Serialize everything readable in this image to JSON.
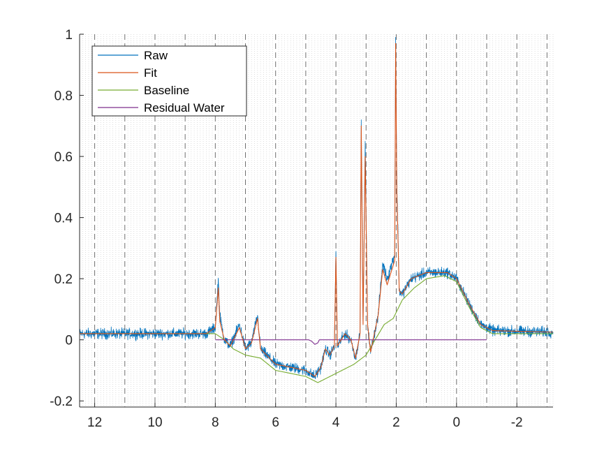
{
  "chart_data": {
    "type": "line",
    "title": "",
    "xlabel": "",
    "ylabel": "",
    "xlim": [
      12.5,
      -3.2
    ],
    "ylim": [
      -0.22,
      1.0
    ],
    "x_reversed": true,
    "x_ticks": [
      12,
      10,
      8,
      6,
      4,
      2,
      0,
      -2
    ],
    "x_tick_labels": [
      "12",
      "10",
      "8",
      "6",
      "4",
      "2",
      "0",
      "-2"
    ],
    "y_ticks": [
      -0.2,
      0,
      0.2,
      0.4,
      0.6,
      0.8,
      1
    ],
    "y_tick_labels": [
      "-0.2",
      "0",
      "0.2",
      "0.4",
      "0.6",
      "0.8",
      "1"
    ],
    "x_grid_major": [
      12,
      11,
      10,
      9,
      8,
      7,
      6,
      5,
      4,
      3,
      2,
      1,
      0,
      -1,
      -2,
      -3
    ],
    "x_grid_minor_step": 0.1,
    "grid": "vertical",
    "legend_position": "top-left",
    "series": [
      {
        "name": "Raw",
        "color": "#0072BD",
        "noise": 0.025,
        "points": [
          [
            12.5,
            0.02
          ],
          [
            8.3,
            0.02
          ],
          [
            8.0,
            0.04
          ],
          [
            7.9,
            0.2
          ],
          [
            7.85,
            0.08
          ],
          [
            7.7,
            0.0
          ],
          [
            7.5,
            -0.02
          ],
          [
            7.2,
            0.05
          ],
          [
            7.0,
            -0.03
          ],
          [
            6.8,
            -0.01
          ],
          [
            6.6,
            0.08
          ],
          [
            6.5,
            -0.03
          ],
          [
            6.0,
            -0.08
          ],
          [
            5.5,
            -0.09
          ],
          [
            5.0,
            -0.1
          ],
          [
            4.7,
            -0.12
          ],
          [
            4.5,
            -0.09
          ],
          [
            4.35,
            -0.03
          ],
          [
            4.2,
            -0.05
          ],
          [
            4.05,
            -0.02
          ],
          [
            4.0,
            0.29
          ],
          [
            3.95,
            -0.02
          ],
          [
            3.7,
            0.02
          ],
          [
            3.5,
            0.0
          ],
          [
            3.35,
            -0.06
          ],
          [
            3.2,
            0.02
          ],
          [
            3.16,
            0.72
          ],
          [
            3.1,
            0.05
          ],
          [
            3.03,
            0.65
          ],
          [
            2.95,
            0.05
          ],
          [
            2.85,
            -0.04
          ],
          [
            2.6,
            0.08
          ],
          [
            2.45,
            0.25
          ],
          [
            2.3,
            0.2
          ],
          [
            2.05,
            0.28
          ],
          [
            2.02,
            0.99
          ],
          [
            1.98,
            0.52
          ],
          [
            1.9,
            0.16
          ],
          [
            1.8,
            0.15
          ],
          [
            1.5,
            0.2
          ],
          [
            1.0,
            0.22
          ],
          [
            0.3,
            0.22
          ],
          [
            0.0,
            0.2
          ],
          [
            -0.4,
            0.12
          ],
          [
            -0.8,
            0.05
          ],
          [
            -1.2,
            0.03
          ],
          [
            -3.2,
            0.025
          ]
        ]
      },
      {
        "name": "Fit",
        "color": "#D95319",
        "points": [
          [
            12.5,
            0.02
          ],
          [
            8.3,
            0.02
          ],
          [
            8.0,
            0.04
          ],
          [
            7.9,
            0.17
          ],
          [
            7.85,
            0.06
          ],
          [
            7.7,
            0.0
          ],
          [
            7.5,
            -0.02
          ],
          [
            7.2,
            0.04
          ],
          [
            7.0,
            -0.03
          ],
          [
            6.8,
            -0.01
          ],
          [
            6.6,
            0.07
          ],
          [
            6.5,
            -0.03
          ],
          [
            6.0,
            -0.08
          ],
          [
            5.5,
            -0.09
          ],
          [
            5.0,
            -0.1
          ],
          [
            4.7,
            -0.12
          ],
          [
            4.5,
            -0.09
          ],
          [
            4.35,
            -0.03
          ],
          [
            4.2,
            -0.05
          ],
          [
            4.05,
            -0.02
          ],
          [
            4.0,
            0.27
          ],
          [
            3.95,
            -0.02
          ],
          [
            3.7,
            0.02
          ],
          [
            3.5,
            0.0
          ],
          [
            3.35,
            -0.06
          ],
          [
            3.2,
            0.02
          ],
          [
            3.16,
            0.7
          ],
          [
            3.1,
            0.05
          ],
          [
            3.03,
            0.6
          ],
          [
            2.95,
            0.05
          ],
          [
            2.85,
            -0.04
          ],
          [
            2.6,
            0.08
          ],
          [
            2.45,
            0.23
          ],
          [
            2.3,
            0.18
          ],
          [
            2.05,
            0.26
          ],
          [
            2.02,
            0.97
          ],
          [
            1.98,
            0.48
          ],
          [
            1.9,
            0.16
          ],
          [
            1.8,
            0.15
          ],
          [
            1.5,
            0.2
          ],
          [
            1.0,
            0.22
          ],
          [
            0.3,
            0.22
          ],
          [
            0.0,
            0.2
          ],
          [
            -0.4,
            0.12
          ],
          [
            -0.8,
            0.05
          ],
          [
            -1.2,
            0.03
          ],
          [
            -3.2,
            0.025
          ]
        ]
      },
      {
        "name": "Baseline",
        "color": "#77AC30",
        "points": [
          [
            12.5,
            0.02
          ],
          [
            8.0,
            0.02
          ],
          [
            7.7,
            0.0
          ],
          [
            7.4,
            -0.03
          ],
          [
            7.0,
            -0.05
          ],
          [
            6.5,
            -0.06
          ],
          [
            6.0,
            -0.1
          ],
          [
            5.5,
            -0.11
          ],
          [
            5.0,
            -0.12
          ],
          [
            4.6,
            -0.14
          ],
          [
            4.2,
            -0.12
          ],
          [
            3.8,
            -0.1
          ],
          [
            3.4,
            -0.08
          ],
          [
            3.0,
            -0.05
          ],
          [
            2.7,
            0.0
          ],
          [
            2.4,
            0.05
          ],
          [
            2.1,
            0.07
          ],
          [
            1.8,
            0.13
          ],
          [
            1.4,
            0.17
          ],
          [
            1.0,
            0.2
          ],
          [
            0.4,
            0.21
          ],
          [
            0.0,
            0.19
          ],
          [
            -0.4,
            0.11
          ],
          [
            -0.8,
            0.04
          ],
          [
            -1.2,
            0.02
          ],
          [
            -3.2,
            0.02
          ]
        ]
      },
      {
        "name": "Residual Water",
        "color": "#7E2F8E",
        "points": [
          [
            8.0,
            0.0
          ],
          [
            4.9,
            0.0
          ],
          [
            4.8,
            -0.005
          ],
          [
            4.7,
            -0.015
          ],
          [
            4.6,
            -0.01
          ],
          [
            4.55,
            0.0
          ],
          [
            -1.0,
            0.0
          ]
        ]
      }
    ]
  }
}
